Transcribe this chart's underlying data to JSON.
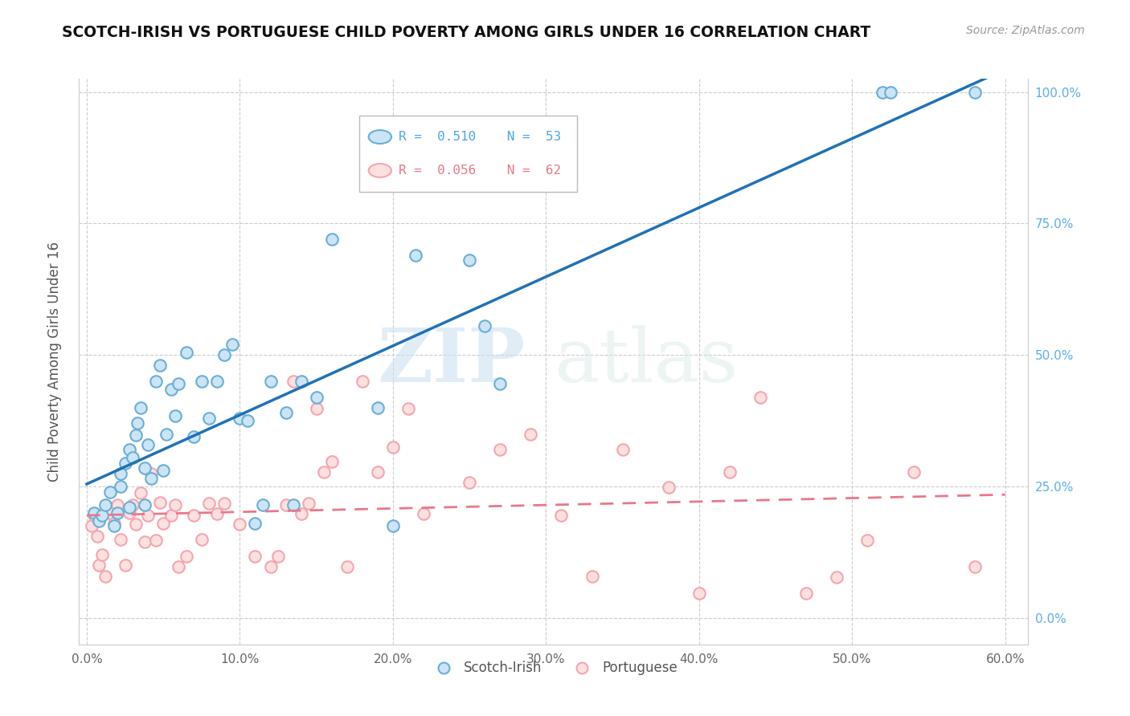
{
  "title": "SCOTCH-IRISH VS PORTUGUESE CHILD POVERTY AMONG GIRLS UNDER 16 CORRELATION CHART",
  "source": "Source: ZipAtlas.com",
  "ylabel": "Child Poverty Among Girls Under 16",
  "xlim": [
    0.0,
    0.6
  ],
  "ylim": [
    0.0,
    1.0
  ],
  "x_tick_vals": [
    0.0,
    0.1,
    0.2,
    0.3,
    0.4,
    0.5,
    0.6
  ],
  "x_tick_labels": [
    "0.0%",
    "10.0%",
    "20.0%",
    "30.0%",
    "40.0%",
    "50.0%",
    "60.0%"
  ],
  "y_tick_vals": [
    0.0,
    0.25,
    0.5,
    0.75,
    1.0
  ],
  "y_tick_labels": [
    "0.0%",
    "25.0%",
    "50.0%",
    "75.0%",
    "100.0%"
  ],
  "legend_r1": "R = 0.510",
  "legend_n1": "N = 53",
  "legend_r2": "R = 0.056",
  "legend_n2": "N = 62",
  "si_face": "#cce5f6",
  "si_edge": "#6baed6",
  "pt_face": "#fde0e0",
  "pt_edge": "#f4a6b0",
  "si_line_color": "#2171b5",
  "pt_line_color": "#e8788a",
  "watermark": "ZIPatlas",
  "scotch_irish_x": [
    0.005,
    0.008,
    0.01,
    0.012,
    0.015,
    0.018,
    0.02,
    0.022,
    0.022,
    0.025,
    0.028,
    0.028,
    0.03,
    0.032,
    0.033,
    0.035,
    0.038,
    0.038,
    0.04,
    0.042,
    0.045,
    0.048,
    0.05,
    0.052,
    0.055,
    0.058,
    0.06,
    0.065,
    0.07,
    0.075,
    0.08,
    0.085,
    0.09,
    0.095,
    0.1,
    0.105,
    0.11,
    0.115,
    0.12,
    0.13,
    0.135,
    0.14,
    0.15,
    0.16,
    0.19,
    0.2,
    0.215,
    0.25,
    0.26,
    0.27,
    0.52,
    0.525,
    0.58
  ],
  "scotch_irish_y": [
    0.2,
    0.185,
    0.195,
    0.215,
    0.24,
    0.175,
    0.2,
    0.25,
    0.275,
    0.295,
    0.21,
    0.32,
    0.305,
    0.348,
    0.37,
    0.4,
    0.215,
    0.285,
    0.33,
    0.265,
    0.45,
    0.48,
    0.28,
    0.35,
    0.435,
    0.385,
    0.445,
    0.505,
    0.345,
    0.45,
    0.38,
    0.45,
    0.5,
    0.52,
    0.38,
    0.375,
    0.18,
    0.215,
    0.45,
    0.39,
    0.215,
    0.45,
    0.42,
    0.72,
    0.4,
    0.175,
    0.69,
    0.68,
    0.555,
    0.445,
    1.0,
    1.0,
    1.0
  ],
  "portuguese_x": [
    0.003,
    0.005,
    0.007,
    0.008,
    0.01,
    0.012,
    0.015,
    0.018,
    0.02,
    0.022,
    0.025,
    0.028,
    0.03,
    0.032,
    0.035,
    0.038,
    0.04,
    0.042,
    0.045,
    0.048,
    0.05,
    0.055,
    0.058,
    0.06,
    0.065,
    0.07,
    0.075,
    0.08,
    0.085,
    0.09,
    0.1,
    0.11,
    0.12,
    0.125,
    0.13,
    0.135,
    0.14,
    0.145,
    0.15,
    0.155,
    0.16,
    0.17,
    0.18,
    0.19,
    0.2,
    0.21,
    0.22,
    0.25,
    0.27,
    0.29,
    0.31,
    0.33,
    0.35,
    0.38,
    0.4,
    0.42,
    0.44,
    0.47,
    0.49,
    0.51,
    0.54,
    0.58
  ],
  "portuguese_y": [
    0.175,
    0.195,
    0.155,
    0.1,
    0.12,
    0.08,
    0.2,
    0.18,
    0.215,
    0.15,
    0.1,
    0.2,
    0.215,
    0.178,
    0.238,
    0.145,
    0.195,
    0.275,
    0.148,
    0.22,
    0.18,
    0.195,
    0.215,
    0.098,
    0.118,
    0.195,
    0.15,
    0.218,
    0.198,
    0.218,
    0.178,
    0.118,
    0.098,
    0.118,
    0.215,
    0.45,
    0.198,
    0.218,
    0.398,
    0.278,
    0.298,
    0.098,
    0.45,
    0.278,
    0.325,
    0.398,
    0.198,
    0.258,
    0.32,
    0.35,
    0.195,
    0.08,
    0.32,
    0.248,
    0.048,
    0.278,
    0.42,
    0.048,
    0.078,
    0.148,
    0.278,
    0.098
  ]
}
